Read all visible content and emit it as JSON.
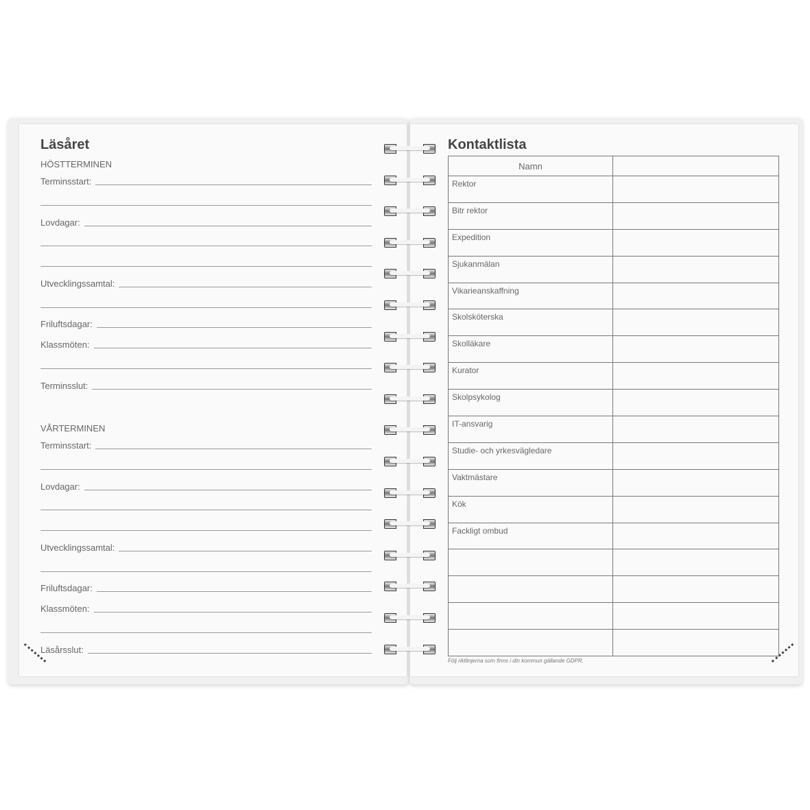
{
  "left_page": {
    "title": "Läsåret",
    "sections": [
      {
        "heading": "HÖSTTERMINEN",
        "rows": [
          "Terminsstart:",
          "",
          "Lovdagar:",
          "",
          "",
          "Utvecklingssamtal:",
          "",
          "Friluftsdagar:",
          "Klassmöten:",
          "",
          "Terminsslut:"
        ]
      },
      {
        "heading": "VÅRTERMINEN",
        "rows": [
          "Terminsstart:",
          "",
          "Lovdagar:",
          "",
          "",
          "Utvecklingssamtal:",
          "",
          "Friluftsdagar:",
          "Klassmöten:",
          "",
          "Läsårsslut:"
        ]
      }
    ]
  },
  "right_page": {
    "title": "Kontaktlista",
    "table": {
      "headers": [
        "Namn",
        ""
      ],
      "rows": [
        "Rektor",
        "Bitr rektor",
        "Expedition",
        "Sjukanmälan",
        "Vikarieanskaffning",
        "Skolsköterska",
        "Skolläkare",
        "Kurator",
        "Skolpsykolog",
        "IT-ansvarig",
        "Studie- och yrkesvägledare",
        "Vaktmästare",
        "Kök",
        "Fackligt ombud",
        "",
        "",
        "",
        ""
      ]
    },
    "footnote": "Följ riktlinjerna som finns i din kommun gällande GDPR."
  }
}
